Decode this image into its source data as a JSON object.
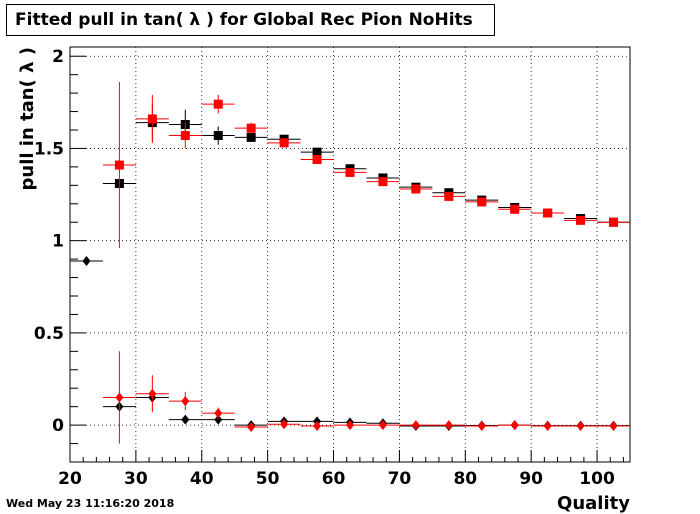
{
  "chart_data": {
    "type": "scatter",
    "title": "Fitted pull in tan( λ ) for Global Rec Pion NoHits",
    "xlabel": "Quality",
    "ylabel": "pull in tan( λ )",
    "xlim": [
      20,
      105
    ],
    "ylim": [
      -0.2,
      2.05
    ],
    "grid": true,
    "xticks": [
      20,
      30,
      40,
      50,
      60,
      70,
      80,
      90,
      100
    ],
    "yticks": [
      0,
      0.5,
      1,
      1.5,
      2
    ],
    "xtick_labels": [
      "20",
      "30",
      "40",
      "50",
      "60",
      "70",
      "80",
      "90",
      "100"
    ],
    "ytick_labels": [
      "0",
      "0.5",
      "1",
      "1.5",
      "2"
    ],
    "series": [
      {
        "marker": "square",
        "color": "#000000",
        "points": [
          {
            "x": 27.5,
            "y": 1.31,
            "err": 0
          },
          {
            "x": 32.5,
            "y": 1.64,
            "err": 0.1
          },
          {
            "x": 37.5,
            "y": 1.63,
            "err": 0.08
          },
          {
            "x": 42.5,
            "y": 1.57,
            "err": 0.05
          },
          {
            "x": 47.5,
            "y": 1.56,
            "err": 0.02
          },
          {
            "x": 52.5,
            "y": 1.55,
            "err": 0.02
          },
          {
            "x": 57.5,
            "y": 1.48,
            "err": 0.02
          },
          {
            "x": 62.5,
            "y": 1.39,
            "err": 0.02
          },
          {
            "x": 67.5,
            "y": 1.34,
            "err": 0.015
          },
          {
            "x": 72.5,
            "y": 1.29,
            "err": 0.01
          },
          {
            "x": 77.5,
            "y": 1.26,
            "err": 0.01
          },
          {
            "x": 82.5,
            "y": 1.22,
            "err": 0.01
          },
          {
            "x": 87.5,
            "y": 1.18,
            "err": 0.01
          },
          {
            "x": 92.5,
            "y": 1.15,
            "err": 0.01
          },
          {
            "x": 97.5,
            "y": 1.12,
            "err": 0.01
          },
          {
            "x": 102.5,
            "y": 1.1,
            "err": 0.01
          }
        ]
      },
      {
        "marker": "square",
        "color": "#ff0000",
        "points": [
          {
            "x": 27.5,
            "y": 1.41,
            "err": 0.45
          },
          {
            "x": 32.5,
            "y": 1.66,
            "err": 0.13
          },
          {
            "x": 37.5,
            "y": 1.57,
            "err": 0.07
          },
          {
            "x": 42.5,
            "y": 1.74,
            "err": 0.05
          },
          {
            "x": 47.5,
            "y": 1.61,
            "err": 0.03
          },
          {
            "x": 52.5,
            "y": 1.53,
            "err": 0.02
          },
          {
            "x": 57.5,
            "y": 1.44,
            "err": 0.02
          },
          {
            "x": 62.5,
            "y": 1.37,
            "err": 0.015
          },
          {
            "x": 67.5,
            "y": 1.32,
            "err": 0.015
          },
          {
            "x": 72.5,
            "y": 1.28,
            "err": 0.01
          },
          {
            "x": 77.5,
            "y": 1.24,
            "err": 0.01
          },
          {
            "x": 82.5,
            "y": 1.21,
            "err": 0.01
          },
          {
            "x": 87.5,
            "y": 1.17,
            "err": 0.01
          },
          {
            "x": 92.5,
            "y": 1.15,
            "err": 0.01
          },
          {
            "x": 97.5,
            "y": 1.11,
            "err": 0.01
          },
          {
            "x": 102.5,
            "y": 1.1,
            "err": 0.01
          }
        ]
      },
      {
        "marker": "diamond",
        "color": "#000000",
        "points": [
          {
            "x": 22.5,
            "y": 0.89,
            "err": 0
          },
          {
            "x": 27.5,
            "y": 0.1,
            "err": 0
          },
          {
            "x": 32.5,
            "y": 0.15,
            "err": 0.03
          },
          {
            "x": 37.5,
            "y": 0.03,
            "err": 0.02
          },
          {
            "x": 42.5,
            "y": 0.03,
            "err": 0.015
          },
          {
            "x": 47.5,
            "y": 0.0,
            "err": 0.01
          },
          {
            "x": 52.5,
            "y": 0.02,
            "err": 0.01
          },
          {
            "x": 57.5,
            "y": 0.02,
            "err": 0.01
          },
          {
            "x": 62.5,
            "y": 0.015,
            "err": 0.01
          },
          {
            "x": 67.5,
            "y": 0.01,
            "err": 0.01
          },
          {
            "x": 72.5,
            "y": -0.005,
            "err": 0.01
          },
          {
            "x": 77.5,
            "y": -0.005,
            "err": 0.005
          },
          {
            "x": 82.5,
            "y": -0.002,
            "err": 0.005
          },
          {
            "x": 87.5,
            "y": 0.0,
            "err": 0.005
          },
          {
            "x": 92.5,
            "y": -0.003,
            "err": 0.005
          },
          {
            "x": 97.5,
            "y": -0.003,
            "err": 0.005
          },
          {
            "x": 102.5,
            "y": -0.003,
            "err": 0.005
          }
        ]
      },
      {
        "marker": "diamond",
        "color": "#ff0000",
        "points": [
          {
            "x": 27.5,
            "y": 0.15,
            "err": 0.25
          },
          {
            "x": 32.5,
            "y": 0.17,
            "err": 0.1
          },
          {
            "x": 37.5,
            "y": 0.13,
            "err": 0.05
          },
          {
            "x": 42.5,
            "y": 0.065,
            "err": 0.03
          },
          {
            "x": 47.5,
            "y": -0.01,
            "err": 0.02
          },
          {
            "x": 52.5,
            "y": 0.005,
            "err": 0.015
          },
          {
            "x": 57.5,
            "y": -0.005,
            "err": 0.01
          },
          {
            "x": 62.5,
            "y": 0.0,
            "err": 0.01
          },
          {
            "x": 67.5,
            "y": 0.0,
            "err": 0.01
          },
          {
            "x": 72.5,
            "y": 0.0,
            "err": 0.01
          },
          {
            "x": 77.5,
            "y": 0.0,
            "err": 0.005
          },
          {
            "x": 82.5,
            "y": -0.005,
            "err": 0.005
          },
          {
            "x": 87.5,
            "y": 0.0,
            "err": 0.005
          },
          {
            "x": 92.5,
            "y": -0.005,
            "err": 0.005
          },
          {
            "x": 97.5,
            "y": -0.005,
            "err": 0.005
          },
          {
            "x": 102.5,
            "y": -0.005,
            "err": 0.005
          }
        ]
      }
    ]
  },
  "timestamp": "Wed May 23 11:16:20 2018"
}
